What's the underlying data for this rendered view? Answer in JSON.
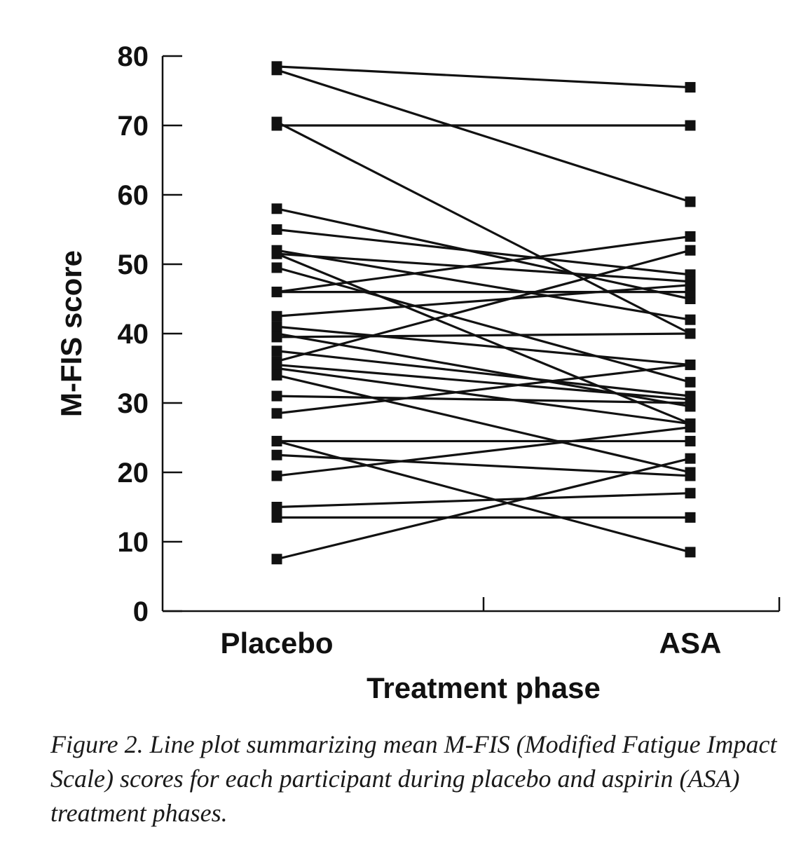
{
  "caption": "Figure 2. Line plot summarizing mean M-FIS (Modified Fatigue Impact Scale) scores for each participant during placebo and aspirin (ASA) treatment phases.",
  "chart_data": {
    "type": "line",
    "categories": [
      "Placebo",
      "ASA"
    ],
    "xlabel": "Treatment phase",
    "ylabel": "M-FIS score",
    "ylim": [
      0,
      80
    ],
    "yticks": [
      0,
      10,
      20,
      30,
      40,
      50,
      60,
      70,
      80
    ],
    "grid": false,
    "legend": "none",
    "line_color": "#111111",
    "marker": "square",
    "series": [
      {
        "values": [
          78.5,
          75.5
        ]
      },
      {
        "values": [
          78,
          59
        ]
      },
      {
        "values": [
          70,
          70
        ]
      },
      {
        "values": [
          70.5,
          40
        ]
      },
      {
        "values": [
          58,
          45
        ]
      },
      {
        "values": [
          55,
          48.5
        ]
      },
      {
        "values": [
          52,
          42
        ]
      },
      {
        "values": [
          51.5,
          27
        ]
      },
      {
        "values": [
          51.5,
          47.5
        ]
      },
      {
        "values": [
          49.5,
          33
        ]
      },
      {
        "values": [
          46,
          54
        ]
      },
      {
        "values": [
          46,
          46
        ]
      },
      {
        "values": [
          42.5,
          47
        ]
      },
      {
        "values": [
          41,
          35.5
        ]
      },
      {
        "values": [
          40,
          29.5
        ]
      },
      {
        "values": [
          39.5,
          40
        ]
      },
      {
        "values": [
          37.5,
          31
        ]
      },
      {
        "values": [
          36,
          52
        ]
      },
      {
        "values": [
          35.5,
          30.5
        ]
      },
      {
        "values": [
          35,
          27
        ]
      },
      {
        "values": [
          34,
          20
        ]
      },
      {
        "values": [
          31,
          30
        ]
      },
      {
        "values": [
          28.5,
          35.5
        ]
      },
      {
        "values": [
          24.5,
          24.5
        ]
      },
      {
        "values": [
          24.5,
          8.5
        ]
      },
      {
        "values": [
          22.5,
          19.5
        ]
      },
      {
        "values": [
          19.5,
          26.5
        ]
      },
      {
        "values": [
          15,
          17
        ]
      },
      {
        "values": [
          13.5,
          13.5
        ]
      },
      {
        "values": [
          7.5,
          22
        ]
      }
    ]
  }
}
